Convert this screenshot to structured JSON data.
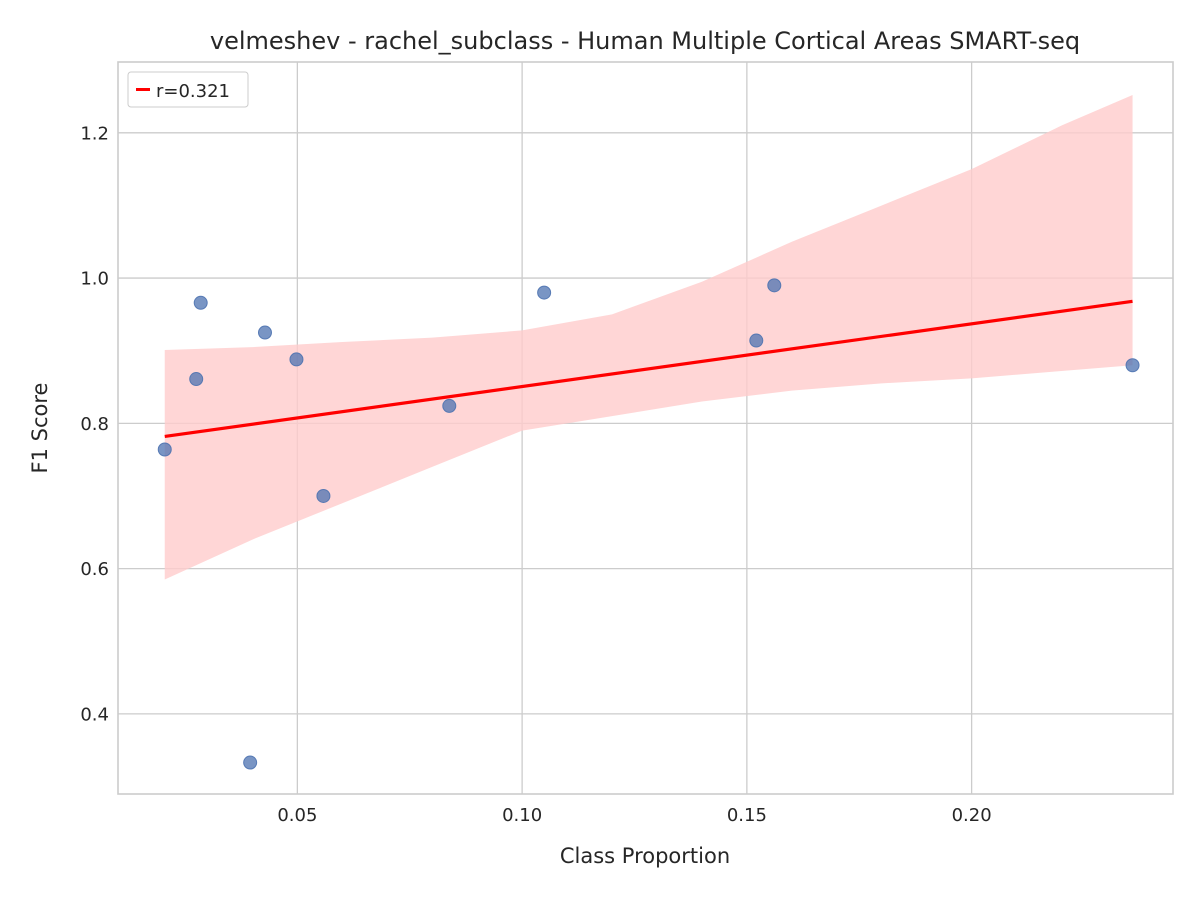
{
  "chart_data": {
    "type": "scatter",
    "title": "velmeshev - rachel_subclass - Human Multiple Cortical Areas SMART-seq",
    "xlabel": "Class Proportion",
    "ylabel": "F1 Score",
    "xlim": [
      0.0101,
      0.2448
    ],
    "ylim": [
      0.2897,
      1.2975
    ],
    "xticks": [
      0.05,
      0.1,
      0.15,
      0.2
    ],
    "xtick_labels": [
      "0.05",
      "0.10",
      "0.15",
      "0.20"
    ],
    "yticks": [
      0.4,
      0.6,
      0.8,
      1.0,
      1.2
    ],
    "ytick_labels": [
      "0.4",
      "0.6",
      "0.8",
      "1.0",
      "1.2"
    ],
    "grid": true,
    "legend": {
      "placement": "top-left",
      "entries": [
        "r=0.321"
      ]
    },
    "points": [
      {
        "x": 0.0205,
        "y": 0.764
      },
      {
        "x": 0.0275,
        "y": 0.861
      },
      {
        "x": 0.0285,
        "y": 0.966
      },
      {
        "x": 0.0395,
        "y": 0.333
      },
      {
        "x": 0.0428,
        "y": 0.925
      },
      {
        "x": 0.0498,
        "y": 0.888
      },
      {
        "x": 0.0558,
        "y": 0.7
      },
      {
        "x": 0.0838,
        "y": 0.824
      },
      {
        "x": 0.1049,
        "y": 0.98
      },
      {
        "x": 0.1521,
        "y": 0.914
      },
      {
        "x": 0.1561,
        "y": 0.99
      },
      {
        "x": 0.2358,
        "y": 0.88
      }
    ],
    "fit_line": {
      "label": "r=0.321",
      "x": [
        0.0205,
        0.2358
      ],
      "y": [
        0.782,
        0.968
      ]
    },
    "confidence_band": {
      "x": [
        0.0205,
        0.04,
        0.06,
        0.08,
        0.1,
        0.12,
        0.14,
        0.16,
        0.18,
        0.2,
        0.22,
        0.2358
      ],
      "upper": [
        0.901,
        0.905,
        0.912,
        0.918,
        0.928,
        0.95,
        0.995,
        1.05,
        1.1,
        1.15,
        1.21,
        1.252
      ],
      "lower": [
        0.585,
        0.64,
        0.69,
        0.74,
        0.79,
        0.81,
        0.83,
        0.845,
        0.855,
        0.862,
        0.872,
        0.88
      ]
    },
    "colors": {
      "points": "#4c72b0",
      "fit_line": "#ff0000",
      "band": "#ffcccc",
      "grid": "#cccccc",
      "spine": "#cccccc"
    }
  }
}
